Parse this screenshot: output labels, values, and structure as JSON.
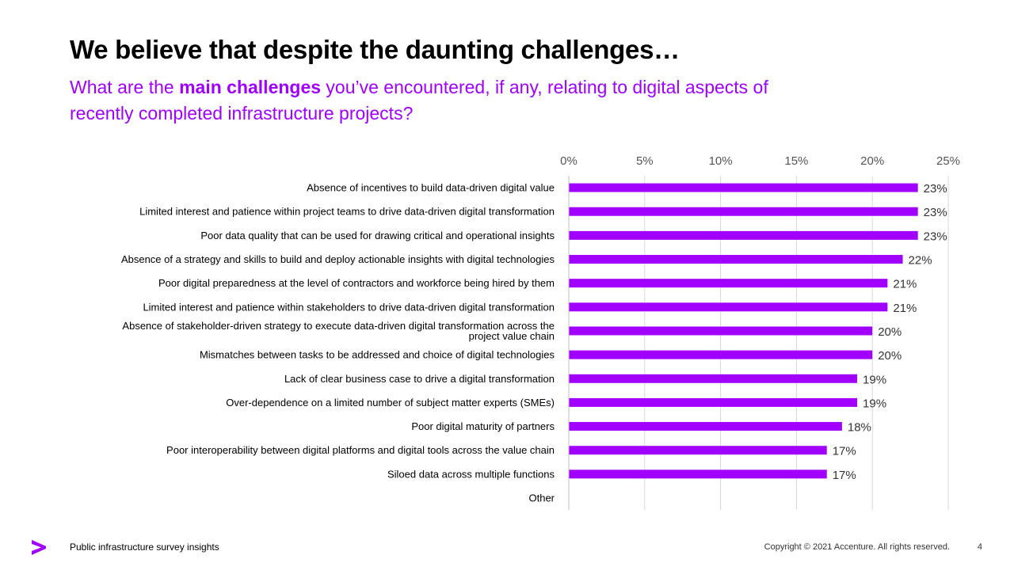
{
  "header": {
    "title": "We believe that despite the daunting challenges…",
    "subtitle_prefix": "What are the ",
    "subtitle_bold": "main challenges",
    "subtitle_suffix": " you’ve encountered, if any, relating to digital aspects of recently completed infrastructure projects?"
  },
  "colors": {
    "accent": "#a100ff",
    "bar": "#a100ff",
    "grid": "#d9d9d9"
  },
  "chart_data": {
    "type": "bar",
    "orientation": "horizontal",
    "title": "",
    "xlabel": "",
    "ylabel": "",
    "xlim": [
      0,
      25
    ],
    "ticks": [
      0,
      5,
      10,
      15,
      20,
      25
    ],
    "tick_labels": [
      "0%",
      "5%",
      "10%",
      "15%",
      "20%",
      "25%"
    ],
    "axis_position": "top",
    "grid": true,
    "categories": [
      "Absence of incentives to build data-driven digital value",
      "Limited interest and patience within project teams to drive data-driven digital transformation",
      "Poor data quality that can be used for drawing critical and operational insights",
      "Absence of a strategy and skills to build and deploy actionable insights with digital technologies",
      "Poor digital preparedness at the level of contractors and workforce being hired by them",
      "Limited interest and patience within stakeholders to drive data-driven digital transformation",
      "Absence of stakeholder-driven strategy to execute data-driven digital transformation across the project value chain",
      "Mismatches between tasks to be addressed and choice of digital technologies",
      "Lack of clear business case to drive a digital transformation",
      "Over-dependence on a limited number of subject matter experts (SMEs)",
      "Poor digital maturity of partners",
      "Poor interoperability between digital platforms and digital tools across the value chain",
      "Siloed data across multiple functions",
      "Other"
    ],
    "category_lines": [
      [
        "Absence of incentives to build data-driven digital value"
      ],
      [
        "Limited interest and patience within project teams to drive data-driven digital transformation"
      ],
      [
        "Poor data quality that can be used for drawing critical and operational insights"
      ],
      [
        "Absence of a strategy and skills to build and deploy actionable insights with digital technologies"
      ],
      [
        "Poor digital preparedness at the level of contractors and workforce being hired by them"
      ],
      [
        "Limited interest and patience within stakeholders to drive data-driven digital transformation"
      ],
      [
        "Absence of stakeholder-driven strategy to execute data-driven digital transformation across the",
        "project value chain"
      ],
      [
        "Mismatches between tasks to be addressed and choice of digital technologies"
      ],
      [
        "Lack of clear business case to drive a digital transformation"
      ],
      [
        "Over-dependence on a limited number of subject matter experts (SMEs)"
      ],
      [
        "Poor digital maturity of partners"
      ],
      [
        "Poor interoperability between digital platforms and digital tools across the value chain"
      ],
      [
        "Siloed data across multiple functions"
      ],
      [
        "Other"
      ]
    ],
    "values": [
      23,
      23,
      23,
      22,
      21,
      21,
      20,
      20,
      19,
      19,
      18,
      17,
      17,
      null
    ],
    "value_labels": [
      "23%",
      "23%",
      "23%",
      "22%",
      "21%",
      "21%",
      "20%",
      "20%",
      "19%",
      "19%",
      "18%",
      "17%",
      "17%",
      ""
    ]
  },
  "footer": {
    "left_text": "Public infrastructure survey insights",
    "copyright": "Copyright © 2021 Accenture. All rights reserved.",
    "page_number": "4",
    "logo_icon": "accenture-chevron-icon"
  }
}
